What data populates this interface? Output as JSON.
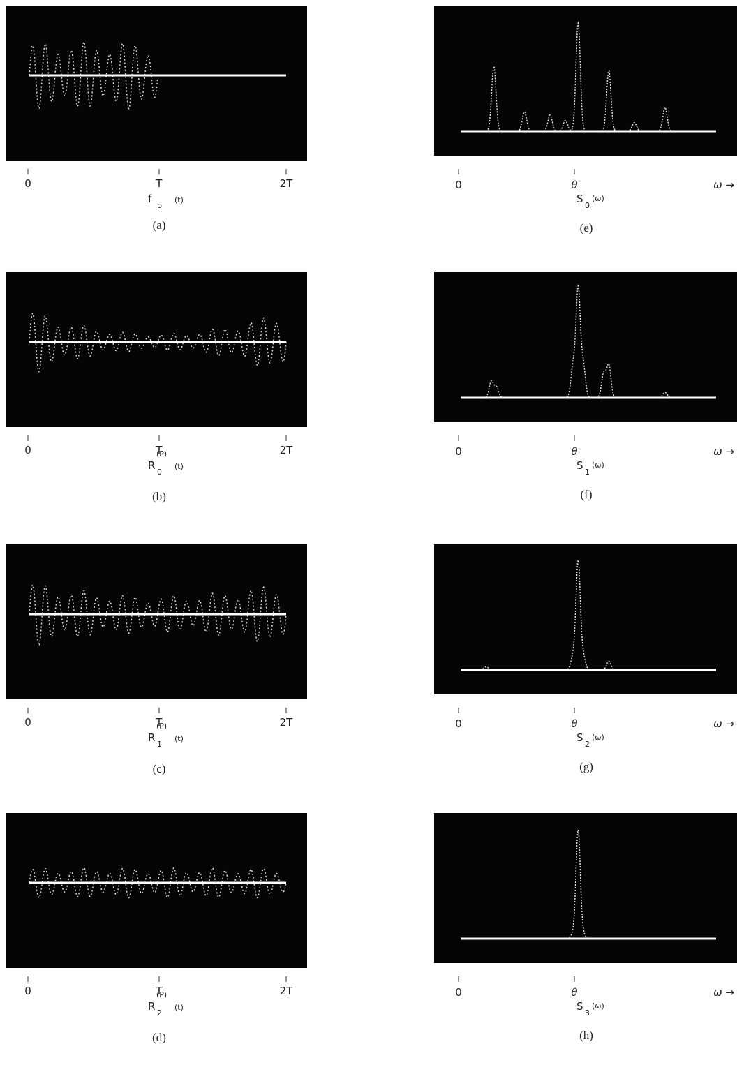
{
  "left": [
    {
      "ticks": [
        "0",
        "T",
        "2T"
      ],
      "label": {
        "base": "f",
        "sub": "p",
        "arg": "(t)"
      },
      "caption": "(a)"
    },
    {
      "ticks": [
        "0",
        "T",
        "2T"
      ],
      "label": {
        "base": "R",
        "sup": "(P)",
        "sub": "0",
        "arg": "(t)"
      },
      "caption": "(b)"
    },
    {
      "ticks": [
        "0",
        "T",
        "2T"
      ],
      "label": {
        "base": "R",
        "sup": "(P)",
        "sub": "1",
        "arg": "(t)"
      },
      "caption": "(c)"
    },
    {
      "ticks": [
        "0",
        "T",
        "2T"
      ],
      "label": {
        "base": "R",
        "sup": "(P)",
        "sub": "2",
        "arg": "(t)"
      },
      "caption": "(d)"
    }
  ],
  "right": [
    {
      "ticks": [
        "0",
        "θ",
        "ω →"
      ],
      "label": {
        "base": "S",
        "sub": "0",
        "arg": "(ω)"
      },
      "caption": "(e)"
    },
    {
      "ticks": [
        "0",
        "θ",
        "ω →"
      ],
      "label": {
        "base": "S",
        "sub": "1",
        "arg": "(ω)"
      },
      "caption": "(f)"
    },
    {
      "ticks": [
        "0",
        "θ",
        "ω →"
      ],
      "label": {
        "base": "S",
        "sub": "2",
        "arg": "(ω)"
      },
      "caption": "(g)"
    },
    {
      "ticks": [
        "0",
        "θ",
        "ω →"
      ],
      "label": {
        "base": "S",
        "sub": "3",
        "arg": "(ω)"
      },
      "caption": "(h)"
    }
  ]
}
